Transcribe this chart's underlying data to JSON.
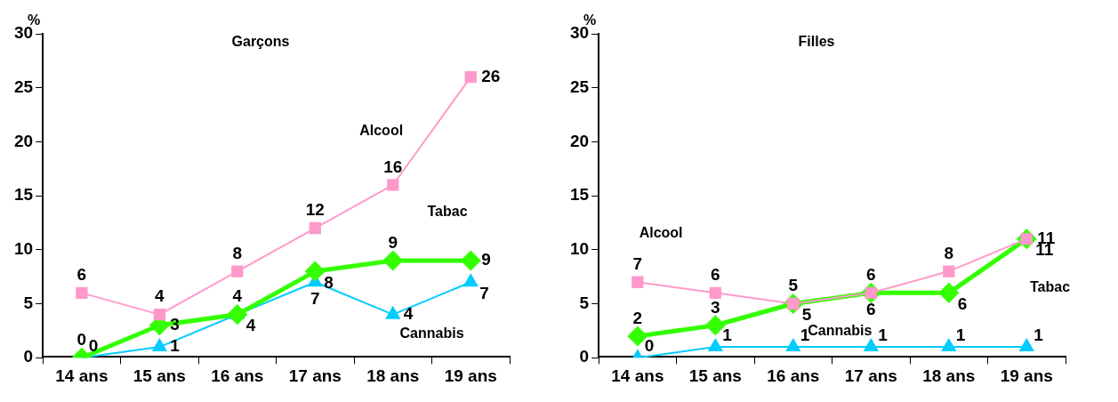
{
  "chart_data": [
    {
      "type": "line",
      "title": "Garçons",
      "ylabel": "%",
      "categories": [
        "14 ans",
        "15 ans",
        "16 ans",
        "17 ans",
        "18 ans",
        "19 ans"
      ],
      "ylim": [
        0,
        30
      ],
      "yticks": [
        0,
        5,
        10,
        15,
        20,
        25,
        30
      ],
      "grid": false,
      "legend": false,
      "data_labels": true,
      "series": [
        {
          "name": "Alcool",
          "color": "#ff99cc",
          "marker": "square",
          "values": [
            6,
            4,
            8,
            12,
            16,
            26
          ]
        },
        {
          "name": "Tabac",
          "color": "#33ff00",
          "marker": "diamond",
          "values": [
            0,
            3,
            4,
            8,
            9,
            9
          ]
        },
        {
          "name": "Cannabis",
          "color": "#00ccff",
          "marker": "triangle",
          "values": [
            0,
            1,
            4,
            7,
            4,
            7
          ]
        }
      ]
    },
    {
      "type": "line",
      "title": "Filles",
      "ylabel": "%",
      "categories": [
        "14 ans",
        "15 ans",
        "16 ans",
        "17 ans",
        "18 ans",
        "19 ans"
      ],
      "ylim": [
        0,
        30
      ],
      "yticks": [
        0,
        5,
        10,
        15,
        20,
        25,
        30
      ],
      "grid": false,
      "legend": false,
      "data_labels": true,
      "series": [
        {
          "name": "Alcool",
          "color": "#ff99cc",
          "marker": "square",
          "values": [
            7,
            6,
            5,
            6,
            8,
            11
          ]
        },
        {
          "name": "Tabac",
          "color": "#33ff00",
          "marker": "diamond",
          "values": [
            2,
            3,
            5,
            6,
            6,
            11
          ]
        },
        {
          "name": "Cannabis",
          "color": "#00ccff",
          "marker": "triangle",
          "values": [
            0,
            1,
            1,
            1,
            1,
            1
          ]
        }
      ]
    }
  ]
}
